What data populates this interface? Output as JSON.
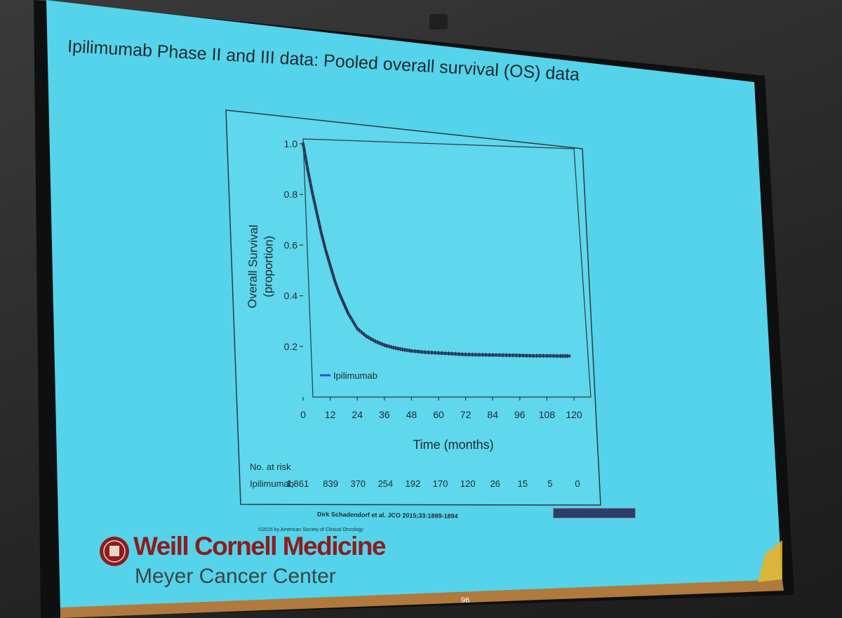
{
  "slide": {
    "title": "Ipilimumab Phase II and III data: Pooled overall survival (OS) data",
    "citation": "Dirk Schadendorf et al. JCO 2015;33:1889-1894",
    "copyright": "©2015 by American Society of Clinical Oncology",
    "organization": "Weill Cornell Medicine",
    "organization_sub": "Meyer Cancer Center",
    "page_number": "96"
  },
  "colors": {
    "slide_bg": "#55d3ea",
    "curve": "#2d3a44",
    "legend_line": "#3050d8",
    "org_red": "#8b1d1d"
  },
  "chart_data": {
    "type": "line",
    "title": "",
    "xlabel": "Time (months)",
    "ylabel_line1": "Overall Survival",
    "ylabel_line2": "(proportion)",
    "xlim": [
      0,
      120
    ],
    "ylim": [
      0,
      1.0
    ],
    "x_ticks": [
      0,
      12,
      24,
      36,
      48,
      60,
      72,
      84,
      96,
      108,
      120
    ],
    "y_ticks": [
      0.2,
      0.4,
      0.6,
      0.8,
      1.0
    ],
    "y_tick_labels": [
      "0.2",
      "0.4",
      "0.6",
      "0.8",
      "1.0"
    ],
    "legend": {
      "label": "Ipilimumab",
      "placement": "bottom-left"
    },
    "series": [
      {
        "name": "Ipilimumab",
        "x": [
          0,
          2,
          4,
          6,
          8,
          10,
          12,
          14,
          16,
          18,
          20,
          24,
          28,
          32,
          36,
          40,
          44,
          48,
          54,
          60,
          66,
          72,
          78,
          84,
          90,
          96,
          102,
          108,
          114,
          118
        ],
        "y": [
          1.0,
          0.9,
          0.81,
          0.73,
          0.65,
          0.58,
          0.52,
          0.46,
          0.41,
          0.37,
          0.33,
          0.27,
          0.24,
          0.22,
          0.205,
          0.195,
          0.188,
          0.182,
          0.177,
          0.174,
          0.171,
          0.168,
          0.167,
          0.166,
          0.165,
          0.164,
          0.163,
          0.163,
          0.162,
          0.162
        ]
      }
    ],
    "at_risk": {
      "header": "No. at risk",
      "label": "Ipilimumab",
      "values": [
        "1,861",
        "839",
        "370",
        "254",
        "192",
        "170",
        "120",
        "26",
        "15",
        "5",
        "0"
      ]
    }
  }
}
